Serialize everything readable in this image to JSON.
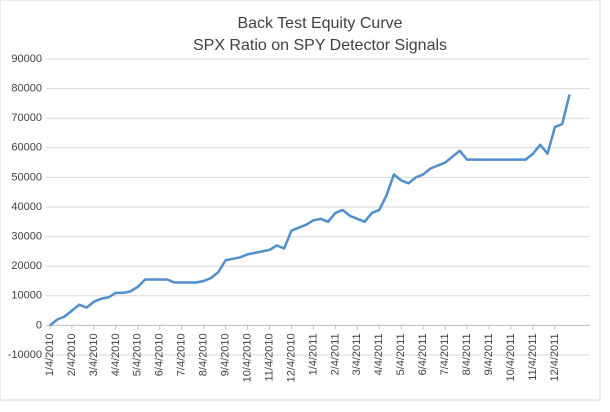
{
  "chart_data": {
    "type": "line",
    "title": [
      "Back Test Equity Curve",
      "SPX Ratio on SPY Detector Signals"
    ],
    "categories": [
      "1/4/2010",
      null,
      null,
      "2/4/2010",
      null,
      null,
      "3/4/2010",
      null,
      null,
      "4/4/2010",
      null,
      null,
      "5/4/2010",
      null,
      null,
      "6/4/2010",
      null,
      null,
      "7/4/2010",
      null,
      null,
      "8/4/2010",
      null,
      null,
      "9/4/2010",
      null,
      null,
      "10/4/2010",
      null,
      null,
      "11/4/2010",
      null,
      null,
      "12/4/2010",
      null,
      null,
      "1/4/2011",
      null,
      null,
      "2/4/2011",
      null,
      null,
      "3/4/2011",
      null,
      null,
      "4/4/2011",
      null,
      null,
      "5/4/2011",
      null,
      null,
      "6/4/2011",
      null,
      null,
      "7/4/2011",
      null,
      null,
      "8/4/2011",
      null,
      null,
      "9/4/2011",
      null,
      null,
      "10/4/2011",
      null,
      null,
      "11/4/2011",
      null,
      null,
      "12/4/2011",
      null,
      null
    ],
    "series": [
      {
        "color": "#4f8fcc",
        "values": [
          0,
          2000,
          3000,
          5000,
          7000,
          6000,
          8000,
          9000,
          9500,
          11000,
          11000,
          11500,
          13000,
          15500,
          15500,
          15500,
          15500,
          14500,
          14500,
          14500,
          14500,
          15000,
          16000,
          18000,
          22000,
          22500,
          23000,
          24000,
          24500,
          25000,
          25500,
          27000,
          26000,
          32000,
          33000,
          34000,
          35500,
          36000,
          35000,
          38000,
          39000,
          37000,
          36000,
          35000,
          38000,
          39000,
          44000,
          51000,
          49000,
          48000,
          50000,
          51000,
          53000,
          54000,
          55000,
          57000,
          59000,
          56000,
          56000,
          56000,
          56000,
          56000,
          56000,
          56000,
          56000,
          56000,
          58000,
          61000,
          58000,
          67000,
          68000,
          78000
        ]
      }
    ],
    "ylim": [
      -10000,
      90000
    ],
    "yticks": [
      -10000,
      0,
      10000,
      20000,
      30000,
      40000,
      50000,
      60000,
      70000,
      80000,
      90000
    ],
    "grid": true
  }
}
